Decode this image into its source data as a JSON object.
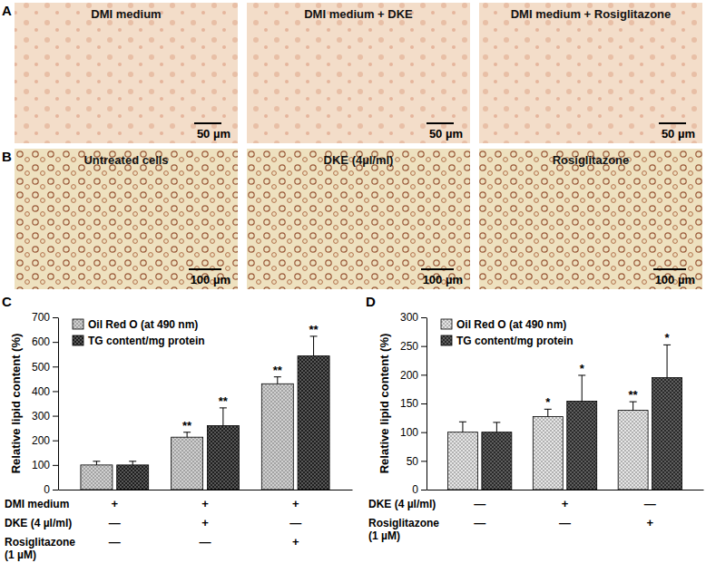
{
  "chart_data": [
    {
      "type": "bar",
      "panel": "C",
      "ylabel": "Relative lipid content (%)",
      "categories": [
        null,
        null,
        null
      ],
      "series": [
        {
          "name": "Oil Red O (at 490 nm)",
          "color": "#d0d0d0",
          "values": [
            100,
            213,
            430
          ],
          "errors": [
            15,
            20,
            28
          ],
          "significance": [
            null,
            "**",
            "**"
          ]
        },
        {
          "name": "TG content/mg protein",
          "color": "#1f1f1f",
          "values": [
            100,
            260,
            543
          ],
          "errors": [
            15,
            72,
            80
          ],
          "significance": [
            null,
            "**",
            "**"
          ]
        }
      ],
      "ylim": [
        0,
        700
      ],
      "yticks": [
        0,
        100,
        200,
        300,
        400,
        500,
        600,
        700
      ],
      "legend": "top-left",
      "grid": false,
      "treatment_table": [
        {
          "label": "DMI medium",
          "values": [
            "+",
            "+",
            "+"
          ]
        },
        {
          "label": "DKE (4 µl/ml)",
          "values": [
            "—",
            "+",
            "—"
          ]
        },
        {
          "label": "Rosiglitazone\n(1 µM)",
          "values": [
            "—",
            "—",
            "+"
          ]
        }
      ]
    },
    {
      "type": "bar",
      "panel": "D",
      "ylabel": "Relative lipid content (%)",
      "categories": [
        null,
        null,
        null
      ],
      "series": [
        {
          "name": "Oil Red O (at 490 nm)",
          "color": "#e6e6e6",
          "values": [
            100,
            127,
            138
          ],
          "errors": [
            18,
            13,
            15
          ],
          "significance": [
            null,
            "*",
            "**"
          ]
        },
        {
          "name": "TG content/mg protein",
          "color": "#2a2a2a",
          "values": [
            100,
            154,
            195
          ],
          "errors": [
            17,
            45,
            57
          ],
          "significance": [
            null,
            "*",
            "*"
          ]
        }
      ],
      "ylim": [
        0,
        300
      ],
      "yticks": [
        0,
        50,
        100,
        150,
        200,
        250,
        300
      ],
      "legend": "top-left",
      "grid": false,
      "treatment_table": [
        {
          "label": "DKE (4 µl/ml)",
          "values": [
            "—",
            "+",
            "—"
          ]
        },
        {
          "label": "Rosiglitazone\n(1 µM)",
          "values": [
            "—",
            "—",
            "+"
          ]
        }
      ]
    }
  ],
  "image_panels": [
    {
      "panel": "A",
      "images": [
        {
          "label": "DMI medium",
          "scale_bar": "50 µm"
        },
        {
          "label": "DMI medium + DKE",
          "scale_bar": "50 µm"
        },
        {
          "label": "DMI medium + Rosiglitazone",
          "scale_bar": "50 µm"
        }
      ]
    },
    {
      "panel": "B",
      "images": [
        {
          "label": "Untreated cells",
          "scale_bar": "100 µm"
        },
        {
          "label": "DKE (4µl/ml)",
          "scale_bar": "100 µm"
        },
        {
          "label": "Rosiglitazone",
          "scale_bar": "100 µm"
        }
      ]
    }
  ]
}
